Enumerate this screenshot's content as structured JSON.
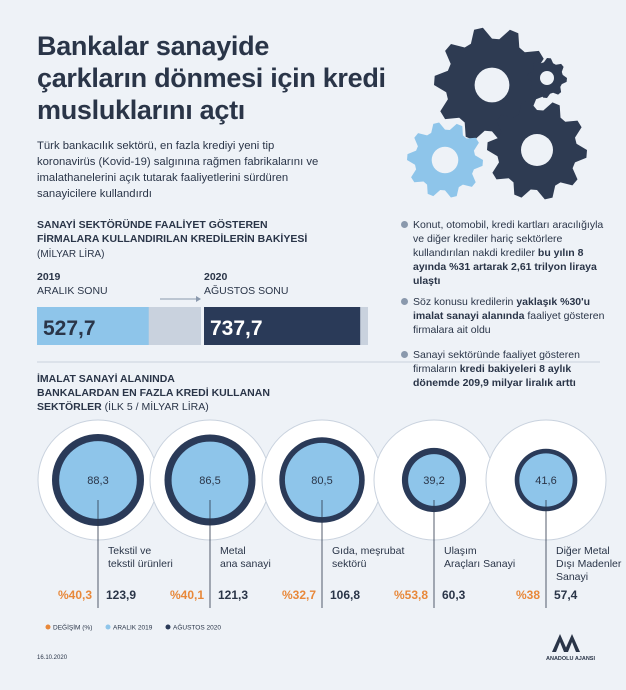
{
  "header": {
    "title": "Bankalar sanayide\nçarkların dönmesi için kredi\nmusluklarını açtı",
    "subtitle": "Türk bankacılık sektörü, en fazla krediyi yeni tip\nkoronavirüs (Kovid-19) salgınına rağmen fabrikalarını ve\nimalathanelerini açık tutarak faaliyetlerini sürdüren\nsanayicilere kullandırdı"
  },
  "balance": {
    "title": "SANAYİ SEKTÖRÜNDE FAALİYET GÖSTEREN\nFİRMALARA KULLANDIRILAN KREDİLERİN BAKİYESİ",
    "unit": "(MİLYAR LİRA)",
    "bars": [
      {
        "year": "2019",
        "period": "ARALIK SONU",
        "value": 527.7,
        "label": "527,7",
        "color": "#8ec5ea"
      },
      {
        "year": "2020",
        "period": "AĞUSTOS SONU",
        "value": 737.7,
        "label": "737,7",
        "color": "#2a3a58"
      }
    ]
  },
  "notes": [
    {
      "runs": [
        {
          "text": "Konut, otomobil, kredi kartları aracılığıyla ve diğer krediler hariç sektörlere kullandırılan nakdi krediler ",
          "bold": false
        },
        {
          "text": "bu yılın 8 ayında %31 artarak 2,61 trilyon liraya ulaştı",
          "bold": true
        }
      ]
    },
    {
      "runs": [
        {
          "text": "Söz konusu kredilerin ",
          "bold": false
        },
        {
          "text": "yaklaşık %30'u imalat sanayi alanında",
          "bold": true
        },
        {
          "text": " faaliyet gösteren firmalara ait oldu",
          "bold": false
        }
      ]
    },
    {
      "runs": [
        {
          "text": "Sanayi sektöründe faaliyet gösteren firmaların ",
          "bold": false
        },
        {
          "text": "kredi bakiyeleri 8 aylık dönemde 209,9 milyar liralık arttı",
          "bold": true
        }
      ]
    }
  ],
  "sectors": {
    "title": "İMALAT SANAYİ ALANINDA\nBANKALARDAN EN FAZLA KREDİ KULLANAN\nSEKTÖRLER",
    "unit": " (İLK 5 / MİLYAR LİRA)",
    "items": [
      {
        "name": "Tekstil ve\ntekstil ürünleri",
        "dec2019": {
          "value": 88.3,
          "label": "88,3"
        },
        "aug2020": {
          "value": 123.9,
          "label": "123,9"
        },
        "change": {
          "value": 40.3,
          "label": "%40,3"
        }
      },
      {
        "name": "Metal\nana sanayi",
        "dec2019": {
          "value": 86.5,
          "label": "86,5"
        },
        "aug2020": {
          "value": 121.3,
          "label": "121,3"
        },
        "change": {
          "value": 40.1,
          "label": "%40,1"
        }
      },
      {
        "name": "Gıda, meşrubat\nsektörü",
        "dec2019": {
          "value": 80.5,
          "label": "80,5"
        },
        "aug2020": {
          "value": 106.8,
          "label": "106,8"
        },
        "change": {
          "value": 32.7,
          "label": "%32,7"
        }
      },
      {
        "name": "Ulaşım\nAraçları Sanayi",
        "dec2019": {
          "value": 39.2,
          "label": "39,2"
        },
        "aug2020": {
          "value": 60.3,
          "label": "60,3"
        },
        "change": {
          "value": 53.8,
          "label": "%53,8"
        }
      },
      {
        "name": "Diğer Metal\nDışı Madenler\nSanayi",
        "dec2019": {
          "value": 41.6,
          "label": "41,6"
        },
        "aug2020": {
          "value": 57.4,
          "label": "57,4"
        },
        "change": {
          "value": 38,
          "label": "%38"
        }
      }
    ],
    "legend": [
      {
        "name": "DEĞİŞİM (%)",
        "color": "#e8883a"
      },
      {
        "name": "ARALIK 2019",
        "color": "#8ec5ea"
      },
      {
        "name": "AĞUSTOS 2020",
        "color": "#2a3a58"
      }
    ]
  },
  "footer": {
    "date": "16.10.2020",
    "agency": "ANADOLU AJANSI"
  }
}
